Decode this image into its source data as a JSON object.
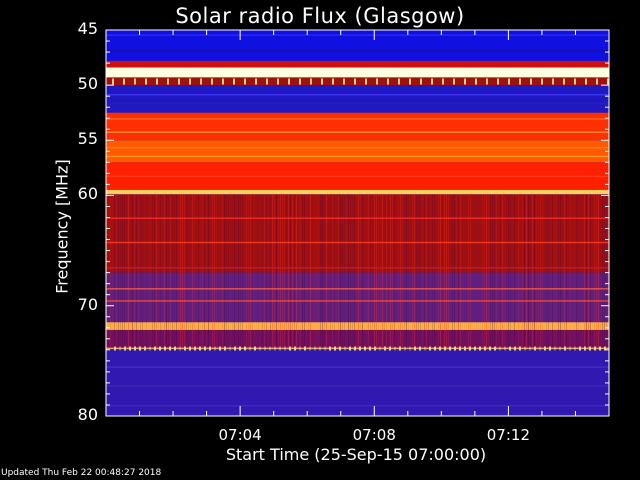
{
  "chart_data": {
    "type": "heatmap",
    "title": "Solar radio Flux (Glasgow)",
    "xlabel": "Start Time (25-Sep-15 07:00:00)",
    "ylabel": "Frequency [MHz]",
    "yticks": [
      "45",
      "50",
      "55",
      "60",
      "70",
      "80"
    ],
    "ytick_values": [
      45,
      50,
      55,
      60,
      70,
      80
    ],
    "xticks": [
      "07:04",
      "07:08",
      "07:12"
    ],
    "xtick_minutes": [
      4,
      8,
      12
    ],
    "xlim_minutes": [
      0,
      15
    ],
    "ylim": [
      45,
      80
    ],
    "y_direction": "increasing downward",
    "colormap": "blue-red-yellow-white",
    "bands": [
      {
        "from": 45.0,
        "to": 47.8,
        "color": "#1010e0"
      },
      {
        "from": 47.8,
        "to": 48.4,
        "color": "#d01010"
      },
      {
        "from": 48.4,
        "to": 49.3,
        "color": "#ffffe0"
      },
      {
        "from": 49.3,
        "to": 50.0,
        "color": "#a01010"
      },
      {
        "from": 50.0,
        "to": 52.5,
        "color": "#2018c0"
      },
      {
        "from": 52.5,
        "to": 55.0,
        "color": "#ff3000"
      },
      {
        "from": 55.0,
        "to": 57.0,
        "color": "#ff5a00"
      },
      {
        "from": 57.0,
        "to": 59.5,
        "color": "#ff2000"
      },
      {
        "from": 59.5,
        "to": 59.9,
        "color": "#ffd060"
      },
      {
        "from": 59.9,
        "to": 67.0,
        "color": "#a01010"
      },
      {
        "from": 67.0,
        "to": 71.5,
        "color": "#602080"
      },
      {
        "from": 71.5,
        "to": 72.2,
        "color": "#ffb040"
      },
      {
        "from": 72.2,
        "to": 74.0,
        "color": "#701060"
      },
      {
        "from": 74.0,
        "to": 80.0,
        "color": "#3018b0"
      }
    ]
  },
  "footer": {
    "updated": "Updated Thu Feb 22 00:48:27 2018"
  }
}
